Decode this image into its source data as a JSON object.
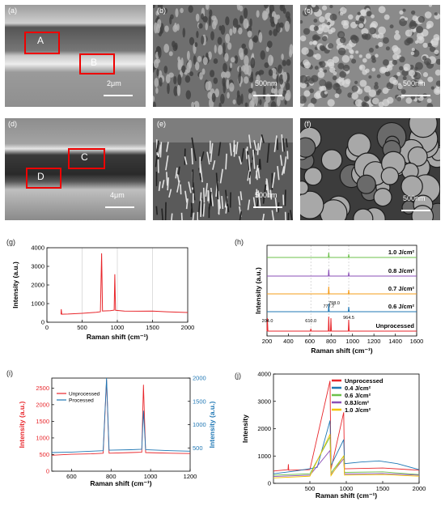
{
  "panels": {
    "a": {
      "label": "(a)",
      "region_labels": [
        "A",
        "B"
      ],
      "scalebar": "2μm"
    },
    "b": {
      "label": "(b)",
      "scalebar": "500nm"
    },
    "c": {
      "label": "(c)",
      "scalebar": "500nm"
    },
    "d": {
      "label": "(d)",
      "region_labels": [
        "C",
        "D"
      ],
      "scalebar": "4μm"
    },
    "e": {
      "label": "(e)",
      "scalebar": "500nm"
    },
    "f": {
      "label": "(f)",
      "scalebar": "500nm"
    },
    "g": {
      "label": "(g)"
    },
    "h": {
      "label": "(h)"
    },
    "i": {
      "label": "(i)"
    },
    "j": {
      "label": "(j)"
    }
  },
  "colors": {
    "red": "#e8262b",
    "blue": "#1f77b4",
    "green": "#6cc04a",
    "purple": "#8b4fb7",
    "yellow": "#f2c400",
    "orange": "#f59c1a"
  },
  "chart_data": [
    {
      "id": "g",
      "type": "line",
      "xlabel": "Raman shift (cm⁻¹)",
      "ylabel": "Intensity (a.u.)",
      "xlim": [
        0,
        2000
      ],
      "ylim": [
        0,
        4000
      ],
      "xticks": [
        0,
        500,
        1000,
        1500,
        2000
      ],
      "yticks": [
        0,
        1000,
        2000,
        3000,
        4000
      ],
      "vlines": [
        500,
        1000,
        1500
      ],
      "series": [
        {
          "color": "#e8262b",
          "points": [
            [
              200,
              420
            ],
            [
              204,
              700
            ],
            [
              210,
              430
            ],
            [
              300,
              440
            ],
            [
              500,
              480
            ],
            [
              700,
              530
            ],
            [
              760,
              560
            ],
            [
              777,
              3700
            ],
            [
              790,
              600
            ],
            [
              900,
              620
            ],
            [
              955,
              650
            ],
            [
              964,
              2580
            ],
            [
              975,
              640
            ],
            [
              1100,
              600
            ],
            [
              1300,
              590
            ],
            [
              1500,
              600
            ],
            [
              1700,
              560
            ],
            [
              2000,
              520
            ]
          ]
        }
      ]
    },
    {
      "id": "h",
      "type": "line",
      "xlabel": "Raman shift (cm⁻¹)",
      "ylabel": "Intensity (a.u.)",
      "xlim": [
        200,
        1600
      ],
      "xticks": [
        200,
        400,
        600,
        800,
        1000,
        1200,
        1400,
        1600
      ],
      "vlines": [
        610,
        777.7,
        964.5
      ],
      "annotations": [
        "204.0",
        "610.0",
        "777.7",
        "798.0",
        "964.5"
      ],
      "series": [
        {
          "name": "Unprocessed",
          "color": "#e8262b",
          "offset": 0,
          "peaks": [
            [
              204,
              1.6
            ],
            [
              610,
              0.3
            ],
            [
              777.7,
              1.8
            ],
            [
              798,
              1.6
            ],
            [
              964.5,
              1.4
            ]
          ]
        },
        {
          "name": "0.6 J/cm²",
          "color": "#1f77b4",
          "offset": 1,
          "peaks": [
            [
              777.7,
              1.0
            ],
            [
              964.5,
              0.6
            ]
          ]
        },
        {
          "name": "0.7 J/cm²",
          "color": "#f59c1a",
          "offset": 2,
          "peaks": [
            [
              777.7,
              0.9
            ],
            [
              964.5,
              0.5
            ]
          ]
        },
        {
          "name": "0.8 J/cm²",
          "color": "#8b4fb7",
          "offset": 3,
          "peaks": [
            [
              777.7,
              0.8
            ],
            [
              964.5,
              0.45
            ]
          ]
        },
        {
          "name": "1.0 J/cm²",
          "color": "#6cc04a",
          "offset": 4,
          "peaks": [
            [
              777.7,
              0.6
            ],
            [
              964.5,
              0.4
            ]
          ]
        }
      ]
    },
    {
      "id": "i",
      "type": "line",
      "xlabel": "Raman shift (cm⁻¹)",
      "ylabel": "Intensity (a.u.)",
      "ylabel_right": "Intensity (a.u.)",
      "xlim": [
        500,
        1200
      ],
      "ylim": [
        0,
        2800
      ],
      "ylim_right": [
        0,
        2000
      ],
      "xticks": [
        600,
        800,
        1000,
        1200
      ],
      "yticks": [
        0,
        500,
        1000,
        1500,
        2000,
        2500
      ],
      "yticks_right": [
        500,
        1000,
        1500,
        2000
      ],
      "legend": [
        "Unprocessed",
        "Processed"
      ],
      "series": [
        {
          "name": "Unprocessed",
          "color": "#e8262b",
          "axis": "left",
          "points": [
            [
              500,
              480
            ],
            [
              600,
              510
            ],
            [
              700,
              520
            ],
            [
              760,
              540
            ],
            [
              777,
              2750
            ],
            [
              790,
              540
            ],
            [
              900,
              560
            ],
            [
              955,
              570
            ],
            [
              964,
              2600
            ],
            [
              975,
              560
            ],
            [
              1100,
              540
            ],
            [
              1200,
              530
            ]
          ]
        },
        {
          "name": "Processed",
          "color": "#1f77b4",
          "axis": "right",
          "points": [
            [
              500,
              400
            ],
            [
              600,
              410
            ],
            [
              700,
              430
            ],
            [
              760,
              440
            ],
            [
              777,
              2000
            ],
            [
              790,
              450
            ],
            [
              900,
              460
            ],
            [
              955,
              470
            ],
            [
              964,
              1300
            ],
            [
              975,
              460
            ],
            [
              1100,
              440
            ],
            [
              1200,
              430
            ]
          ]
        }
      ]
    },
    {
      "id": "j",
      "type": "line",
      "xlabel": "Raman shift (cm⁻¹)",
      "ylabel": "Intensity",
      "xlim": [
        0,
        2000
      ],
      "ylim": [
        0,
        4000
      ],
      "xticks": [
        500,
        1000,
        1500,
        2000
      ],
      "yticks": [
        0,
        1000,
        2000,
        3000,
        4000
      ],
      "legend": [
        "Unprocessed",
        "0.4 J/cm²",
        "0.6 J/cm²",
        "0.8J/cm²",
        "1.0 J/cm²"
      ],
      "series": [
        {
          "name": "Unprocessed",
          "color": "#e8262b",
          "points": [
            [
              0,
              450
            ],
            [
              200,
              500
            ],
            [
              204,
              700
            ],
            [
              210,
              480
            ],
            [
              500,
              500
            ],
            [
              777,
              3750
            ],
            [
              790,
              520
            ],
            [
              964,
              2600
            ],
            [
              975,
              530
            ],
            [
              1500,
              560
            ],
            [
              2000,
              480
            ]
          ]
        },
        {
          "name": "0.4 J/cm²",
          "color": "#1f77b4",
          "points": [
            [
              0,
              350
            ],
            [
              300,
              450
            ],
            [
              600,
              580
            ],
            [
              777,
              2300
            ],
            [
              790,
              650
            ],
            [
              964,
              1600
            ],
            [
              975,
              720
            ],
            [
              1200,
              780
            ],
            [
              1450,
              820
            ],
            [
              1700,
              720
            ],
            [
              2000,
              500
            ]
          ]
        },
        {
          "name": "0.6 J/cm²",
          "color": "#6cc04a",
          "points": [
            [
              0,
              300
            ],
            [
              500,
              350
            ],
            [
              777,
              1700
            ],
            [
              790,
              380
            ],
            [
              964,
              1000
            ],
            [
              975,
              400
            ],
            [
              1500,
              420
            ],
            [
              2000,
              320
            ]
          ]
        },
        {
          "name": "0.8J/cm²",
          "color": "#8b4fb7",
          "points": [
            [
              0,
              250
            ],
            [
              500,
              300
            ],
            [
              777,
              1200
            ],
            [
              790,
              320
            ],
            [
              964,
              900
            ],
            [
              975,
              340
            ],
            [
              1500,
              360
            ],
            [
              2000,
              300
            ]
          ]
        },
        {
          "name": "1.0 J/cm²",
          "color": "#f2c400",
          "points": [
            [
              0,
              200
            ],
            [
              500,
              260
            ],
            [
              777,
              1800
            ],
            [
              790,
              280
            ],
            [
              964,
              1000
            ],
            [
              975,
              300
            ],
            [
              1500,
              320
            ],
            [
              2000,
              260
            ]
          ]
        }
      ]
    }
  ]
}
